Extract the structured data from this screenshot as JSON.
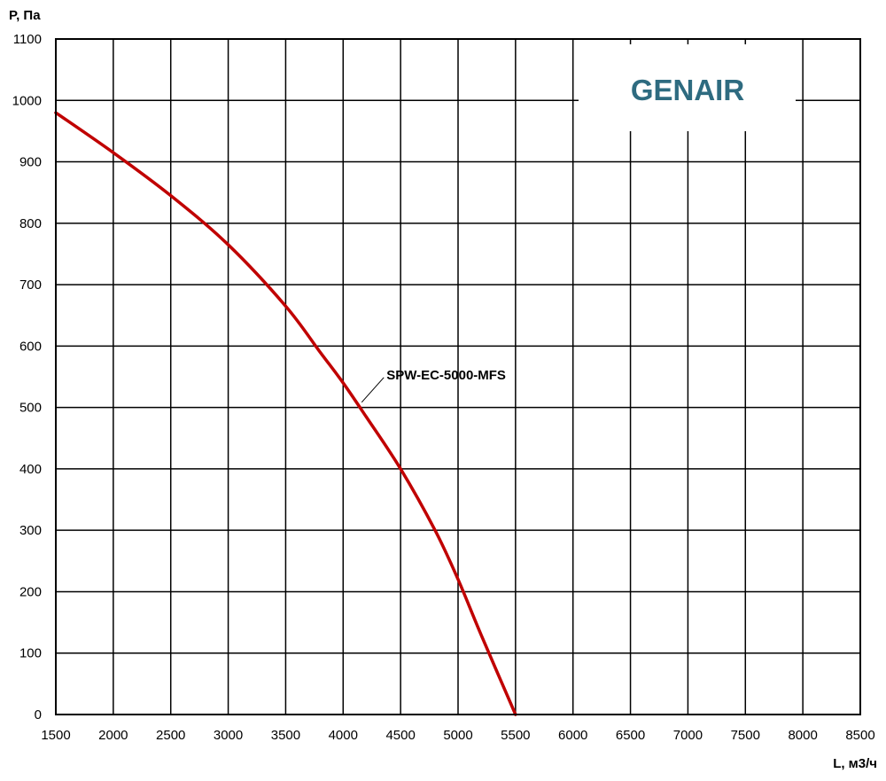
{
  "chart_data": {
    "type": "line",
    "title": "",
    "xlabel": "L, м3/ч",
    "ylabel": "P, Па",
    "xlim": [
      1500,
      8500
    ],
    "ylim": [
      0,
      1100
    ],
    "x_ticks": [
      1500,
      2000,
      2500,
      3000,
      3500,
      4000,
      4500,
      5000,
      5500,
      6000,
      6500,
      7000,
      7500,
      8000,
      8500
    ],
    "y_ticks": [
      0,
      100,
      200,
      300,
      400,
      500,
      600,
      700,
      800,
      900,
      1000,
      1100
    ],
    "grid": true,
    "legend": "none",
    "series": [
      {
        "name": "SPW-EC-5000-MFS",
        "color": "#c00000",
        "x": [
          1500,
          2000,
          2500,
          3000,
          3500,
          3800,
          4000,
          4200,
          4500,
          4800,
          5000,
          5200,
          5500
        ],
        "y": [
          980,
          915,
          845,
          765,
          665,
          590,
          540,
          485,
          400,
          300,
          220,
          130,
          0
        ]
      }
    ],
    "annotations": [
      {
        "text": "SPW-EC-5000-MFS",
        "x": 4200,
        "y": 520
      }
    ]
  },
  "logo": {
    "text": "GENAIR",
    "color": "#2e6b80"
  },
  "colors": {
    "grid": "#000000",
    "curve": "#c00000",
    "background": "#ffffff"
  }
}
